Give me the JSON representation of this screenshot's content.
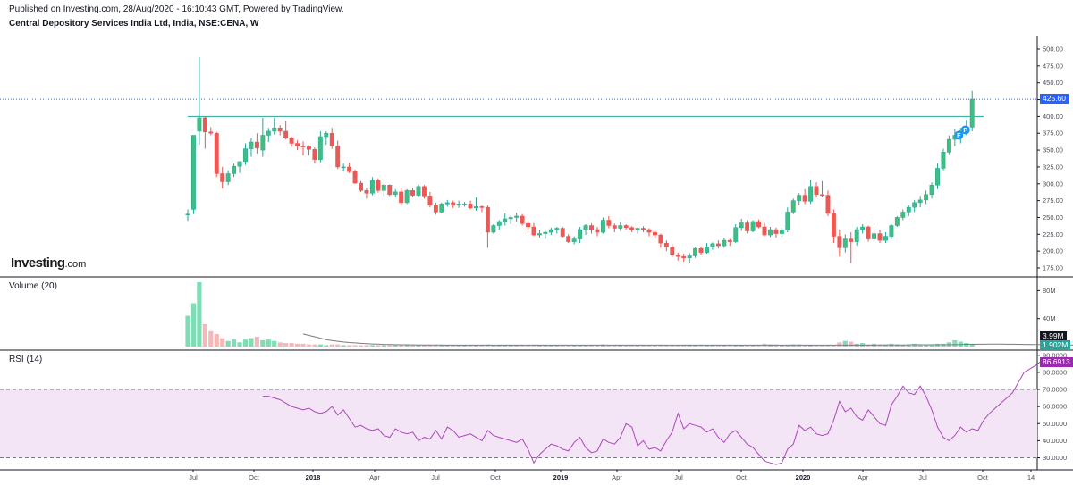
{
  "header": {
    "publisher": "Published on Investing.com, 28/Aug/2020 - 16:10:43 GMT, Powered by TradingView.",
    "symbol": "Central Depository Services India Ltd, India, NSE:CENA, W"
  },
  "logo": {
    "main": "Investing",
    "suffix": ".com"
  },
  "colors": {
    "up": "#26a69a",
    "up_fill": "#3fbf7f",
    "down": "#ef5350",
    "down_fill": "#e85a55",
    "last_price_line": "#2962ff",
    "resistance_line": "#26a69a",
    "rsi": "#ab47bc",
    "rsi_band": "#f3e5f5",
    "volume_ma": "#787b86"
  },
  "chart_data": [
    {
      "type": "candlestick",
      "name": "price",
      "ylim": [
        175,
        500
      ],
      "y_ticks": [
        "500.00",
        "475.00",
        "450.00",
        "425.00",
        "400.00",
        "375.00",
        "350.00",
        "325.00",
        "300.00",
        "275.00",
        "250.00",
        "225.00",
        "200.00",
        "175.00"
      ],
      "last_price": "425.60",
      "horizontal_line": 400,
      "x_ticks": [
        "Jul",
        "Oct",
        "2018",
        "Apr",
        "Jul",
        "Oct",
        "2019",
        "Apr",
        "Jul",
        "Oct",
        "2020",
        "Apr",
        "Jul",
        "Oct",
        "14"
      ],
      "bold_x_ticks": [
        "2018",
        "2019",
        "2020"
      ],
      "markers": [
        "F",
        "P"
      ],
      "candles": [
        [
          255,
          262,
          245,
          255
        ],
        [
          262,
          372,
          255,
          372
        ],
        [
          378,
          488,
          358,
          398
        ],
        [
          398,
          400,
          352,
          377
        ],
        [
          377,
          384,
          372,
          375
        ],
        [
          375,
          377,
          310,
          315
        ],
        [
          315,
          325,
          293,
          303
        ],
        [
          303,
          320,
          298,
          315
        ],
        [
          315,
          330,
          310,
          326
        ],
        [
          326,
          333,
          316,
          333
        ],
        [
          333,
          360,
          328,
          352
        ],
        [
          352,
          368,
          340,
          362
        ],
        [
          362,
          375,
          345,
          353
        ],
        [
          350,
          398,
          340,
          372
        ],
        [
          372,
          383,
          362,
          378
        ],
        [
          378,
          398,
          373,
          383
        ],
        [
          383,
          387,
          372,
          378
        ],
        [
          378,
          393,
          366,
          368
        ],
        [
          368,
          370,
          355,
          360
        ],
        [
          360,
          365,
          350,
          356
        ],
        [
          356,
          363,
          342,
          355
        ],
        [
          355,
          357,
          342,
          351
        ],
        [
          351,
          354,
          330,
          336
        ],
        [
          336,
          378,
          332,
          370
        ],
        [
          370,
          378,
          358,
          375
        ],
        [
          375,
          383,
          352,
          356
        ],
        [
          356,
          364,
          322,
          325
        ],
        [
          325,
          330,
          318,
          325
        ],
        [
          325,
          331,
          316,
          318
        ],
        [
          318,
          321,
          300,
          301
        ],
        [
          301,
          304,
          288,
          290
        ],
        [
          290,
          294,
          278,
          286
        ],
        [
          286,
          310,
          283,
          305
        ],
        [
          305,
          308,
          287,
          290
        ],
        [
          290,
          300,
          282,
          298
        ],
        [
          298,
          299,
          282,
          284
        ],
        [
          284,
          292,
          280,
          288
        ],
        [
          288,
          294,
          268,
          272
        ],
        [
          272,
          292,
          270,
          290
        ],
        [
          290,
          294,
          280,
          283
        ],
        [
          283,
          299,
          280,
          296
        ],
        [
          296,
          298,
          278,
          282
        ],
        [
          282,
          288,
          265,
          268
        ],
        [
          268,
          272,
          254,
          258
        ],
        [
          258,
          272,
          256,
          270
        ],
        [
          270,
          276,
          266,
          272
        ],
        [
          272,
          275,
          264,
          268
        ],
        [
          268,
          275,
          264,
          270
        ],
        [
          270,
          273,
          266,
          270
        ],
        [
          270,
          275,
          262,
          264
        ],
        [
          264,
          280,
          260,
          266
        ],
        [
          266,
          268,
          258,
          265
        ],
        [
          265,
          268,
          205,
          228
        ],
        [
          228,
          240,
          226,
          238
        ],
        [
          238,
          246,
          232,
          244
        ],
        [
          244,
          256,
          238,
          248
        ],
        [
          248,
          253,
          240,
          250
        ],
        [
          250,
          257,
          244,
          252
        ],
        [
          252,
          255,
          238,
          241
        ],
        [
          241,
          245,
          232,
          236
        ],
        [
          236,
          242,
          222,
          224
        ],
        [
          224,
          232,
          220,
          226
        ],
        [
          226,
          230,
          218,
          228
        ],
        [
          228,
          235,
          224,
          232
        ],
        [
          232,
          236,
          226,
          234
        ],
        [
          234,
          236,
          220,
          222
        ],
        [
          222,
          225,
          212,
          214
        ],
        [
          214,
          222,
          210,
          218
        ],
        [
          218,
          236,
          212,
          232
        ],
        [
          232,
          240,
          224,
          238
        ],
        [
          238,
          241,
          226,
          232
        ],
        [
          232,
          236,
          222,
          228
        ],
        [
          228,
          250,
          226,
          246
        ],
        [
          246,
          252,
          234,
          238
        ],
        [
          238,
          241,
          228,
          234
        ],
        [
          234,
          243,
          230,
          238
        ],
        [
          238,
          240,
          232,
          235
        ],
        [
          235,
          237,
          228,
          232
        ],
        [
          232,
          235,
          226,
          234
        ],
        [
          234,
          237,
          228,
          232
        ],
        [
          232,
          234,
          222,
          228
        ],
        [
          228,
          230,
          218,
          224
        ],
        [
          224,
          226,
          205,
          212
        ],
        [
          212,
          216,
          200,
          206
        ],
        [
          206,
          210,
          191,
          194
        ],
        [
          194,
          198,
          186,
          192
        ],
        [
          192,
          196,
          184,
          190
        ],
        [
          190,
          197,
          182,
          193
        ],
        [
          193,
          206,
          190,
          204
        ],
        [
          204,
          207,
          194,
          198
        ],
        [
          198,
          212,
          196,
          206
        ],
        [
          206,
          213,
          202,
          211
        ],
        [
          211,
          216,
          204,
          208
        ],
        [
          208,
          220,
          205,
          216
        ],
        [
          216,
          218,
          208,
          214
        ],
        [
          214,
          240,
          212,
          235
        ],
        [
          235,
          248,
          230,
          242
        ],
        [
          242,
          246,
          226,
          230
        ],
        [
          230,
          246,
          228,
          244
        ],
        [
          244,
          247,
          234,
          236
        ],
        [
          236,
          242,
          222,
          224
        ],
        [
          224,
          236,
          221,
          232
        ],
        [
          232,
          235,
          220,
          226
        ],
        [
          226,
          234,
          222,
          231
        ],
        [
          231,
          265,
          228,
          258
        ],
        [
          258,
          278,
          255,
          275
        ],
        [
          275,
          286,
          268,
          283
        ],
        [
          283,
          292,
          270,
          274
        ],
        [
          274,
          306,
          270,
          296
        ],
        [
          296,
          302,
          280,
          284
        ],
        [
          284,
          304,
          280,
          283
        ],
        [
          283,
          290,
          252,
          256
        ],
        [
          256,
          262,
          212,
          222
        ],
        [
          222,
          232,
          192,
          205
        ],
        [
          205,
          225,
          198,
          218
        ],
        [
          218,
          228,
          182,
          214
        ],
        [
          214,
          236,
          208,
          232
        ],
        [
          232,
          240,
          226,
          236
        ],
        [
          236,
          238,
          214,
          218
        ],
        [
          218,
          236,
          214,
          226
        ],
        [
          226,
          232,
          212,
          216
        ],
        [
          216,
          228,
          212,
          222
        ],
        [
          222,
          240,
          218,
          238
        ],
        [
          238,
          252,
          236,
          250
        ],
        [
          250,
          262,
          246,
          258
        ],
        [
          258,
          268,
          252,
          265
        ],
        [
          265,
          276,
          258,
          272
        ],
        [
          272,
          282,
          265,
          276
        ],
        [
          276,
          290,
          270,
          284
        ],
        [
          284,
          302,
          278,
          298
        ],
        [
          298,
          330,
          292,
          323
        ],
        [
          323,
          352,
          320,
          347
        ],
        [
          347,
          372,
          344,
          366
        ],
        [
          366,
          382,
          356,
          372
        ],
        [
          372,
          383,
          360,
          380
        ],
        [
          380,
          395,
          372,
          384
        ],
        [
          384,
          438,
          378,
          425.6
        ]
      ],
      "candles_format": [
        "open",
        "high",
        "low",
        "close"
      ]
    },
    {
      "type": "bar",
      "name": "volume",
      "title": "Volume (20)",
      "y_ticks": [
        "80M",
        "40M"
      ],
      "ylim": [
        0,
        92
      ],
      "last_volume": "3.99M",
      "volume_ma_value": "1.902M",
      "values": [
        44,
        62,
        92,
        32,
        22,
        18,
        12,
        8,
        10,
        6,
        10,
        12,
        14,
        9,
        10,
        8,
        6,
        5,
        5,
        4,
        4,
        3,
        3,
        3,
        2,
        3,
        3,
        2,
        2,
        2,
        2,
        2,
        2,
        2,
        2,
        2,
        2,
        2,
        2,
        2,
        2,
        2,
        2,
        2,
        2,
        2,
        2,
        2,
        2,
        2,
        2,
        2,
        3,
        2,
        2,
        2,
        2,
        2,
        2,
        2,
        2,
        2,
        2,
        2,
        2,
        2,
        2,
        2,
        2,
        2,
        2,
        2,
        3,
        2,
        2,
        2,
        2,
        2,
        2,
        2,
        2,
        2,
        2,
        2,
        2,
        2,
        2,
        2,
        2,
        2,
        2,
        2,
        2,
        2,
        2,
        2,
        2,
        2,
        2,
        2,
        4,
        3,
        3,
        2,
        2,
        3,
        3,
        2,
        2,
        2,
        2,
        2,
        2,
        6,
        8,
        7,
        4,
        5,
        3,
        4,
        3,
        3,
        4,
        3,
        2,
        3,
        4,
        3,
        3,
        3,
        4,
        4,
        6,
        9,
        7,
        5,
        4
      ],
      "ma_values": [
        18,
        16,
        14,
        12,
        10,
        8.5,
        7.5,
        6.5,
        5.8,
        5.2,
        4.6,
        4.1,
        3.7,
        3.4,
        3.1,
        2.9,
        2.7,
        2.6,
        2.5,
        2.4,
        2.3,
        2.3,
        2.2,
        2.2,
        2.2,
        2.1,
        2.1,
        2.1,
        2.1,
        2.1,
        2.1,
        2.1,
        2.1,
        2.1,
        2.1,
        2.1,
        2.1,
        2.1,
        2.1,
        2.1,
        2.1,
        2.1,
        2.1,
        2.1,
        2.1,
        2.1,
        2.1,
        2.1,
        2.1,
        2.1,
        2.1,
        2.1,
        2.1,
        2.1,
        2.1,
        2.1,
        2.1,
        2.1,
        2.1,
        2.1,
        2.1,
        2.1,
        2.1,
        2.1,
        2.1,
        2.1,
        2.1,
        2.1,
        2.1,
        2.1,
        2.1,
        2.1,
        2.1,
        2.1,
        2.1,
        2.1,
        2.1,
        2.1,
        2.1,
        2.1,
        2.1,
        2.1,
        2.1,
        2.1,
        2.1,
        2.1,
        2.1,
        2.1,
        2.1,
        2.1,
        2.1,
        2.1,
        2.1,
        2.1,
        2.1,
        2.1,
        2.1,
        2.1,
        2.1,
        2.1,
        2.2,
        2.3,
        2.3,
        2.3,
        2.3,
        2.4,
        2.5,
        2.5,
        2.5,
        2.5,
        2.5,
        2.5,
        2.5,
        2.7,
        3.0,
        3.2,
        3.2,
        3.3,
        3.3,
        3.4,
        3.4,
        3.4,
        3.3,
        3.3,
        3.2,
        3.1,
        3.0,
        2.9,
        2.8,
        2.7,
        2.6,
        2.5,
        2.4,
        2.3,
        2.2,
        2.0,
        1.902
      ],
      "ma_start_index": 20
    },
    {
      "type": "line",
      "name": "rsi",
      "title": "RSI (14)",
      "y_ticks": [
        "90.0000",
        "80.0000",
        "70.0000",
        "60.0000",
        "50.0000",
        "40.0000",
        "30.0000"
      ],
      "ylim": [
        25,
        90
      ],
      "band": [
        30,
        70
      ],
      "last_value": "86.6913",
      "start_index": 13,
      "values": [
        66,
        66,
        65,
        64,
        62,
        60,
        59,
        58,
        59,
        57,
        56,
        57,
        60,
        55,
        58,
        53,
        48,
        49,
        47,
        46,
        47,
        43,
        42,
        47,
        45,
        44,
        45,
        40,
        42,
        41,
        46,
        41,
        48,
        46,
        42,
        43,
        44,
        42,
        40,
        46,
        43,
        42,
        41,
        40,
        39,
        41,
        35,
        27,
        32,
        35,
        38,
        37,
        35,
        34,
        39,
        42,
        36,
        33,
        34,
        41,
        39,
        38,
        42,
        50,
        48,
        37,
        40,
        35,
        36,
        34,
        40,
        45,
        56,
        47,
        50,
        49,
        48,
        45,
        47,
        42,
        39,
        44,
        46,
        42,
        38,
        36,
        32,
        28,
        27,
        26,
        27,
        35,
        38,
        49,
        46,
        48,
        44,
        43,
        44,
        52,
        63,
        57,
        59,
        54,
        52,
        58,
        54,
        50,
        49,
        61,
        66,
        72,
        68,
        67,
        72,
        66,
        58,
        48,
        42,
        40,
        43,
        48,
        45,
        47,
        46,
        52,
        56,
        59,
        62,
        65,
        68,
        74,
        80,
        82,
        84,
        86.69
      ]
    }
  ]
}
